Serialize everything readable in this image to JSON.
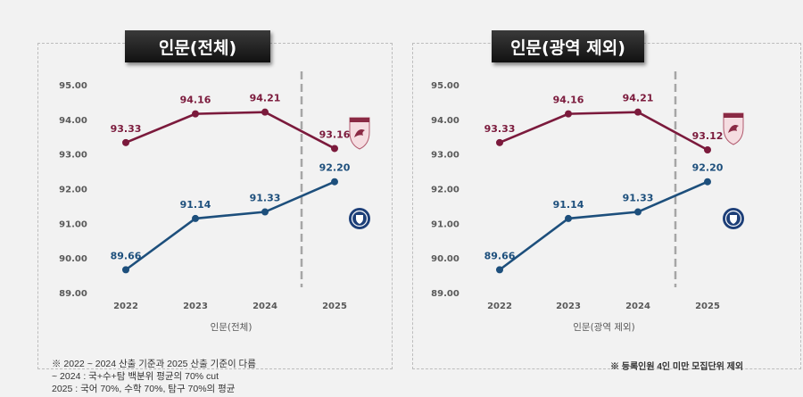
{
  "colors": {
    "korea": "#7b1a3c",
    "yonsei": "#1d4f7c",
    "divider": "#a6a6a6"
  },
  "notes": {
    "left": [
      "※ 2022 ~ 2024 산출 기준과 2025 산출 기준이 다름",
      "~ 2024 : 국+수+탐 백분위 평균의 70% cut",
      "2025 : 국어 70%, 수학 70%, 탐구 70%의 평균"
    ],
    "right": "※ 등록인원 4인 미만 모집단위 제외"
  },
  "chart_data": [
    {
      "type": "line",
      "title": "인문(전체)",
      "xlabel": "인문(전체)",
      "categories": [
        "2022",
        "2023",
        "2024",
        "2025"
      ],
      "ylim": [
        89,
        95
      ],
      "yticks": [
        "89.00",
        "90.00",
        "91.00",
        "92.00",
        "93.00",
        "94.00",
        "95.00"
      ],
      "grid": false,
      "divider_between": [
        "2024",
        "2025"
      ],
      "series": [
        {
          "logo": "korea-university-crest",
          "color": "#7b1a3c",
          "values": [
            93.33,
            94.16,
            94.21,
            93.16
          ],
          "labels": [
            "93.33",
            "94.16",
            "94.21",
            "93.16"
          ]
        },
        {
          "logo": "yonsei-university-crest",
          "color": "#1d4f7c",
          "values": [
            89.66,
            91.14,
            91.33,
            92.2
          ],
          "labels": [
            "89.66",
            "91.14",
            "91.33",
            "92.20"
          ]
        }
      ]
    },
    {
      "type": "line",
      "title": "인문(광역 제외)",
      "xlabel": "인문(광역 제외)",
      "categories": [
        "2022",
        "2023",
        "2024",
        "2025"
      ],
      "ylim": [
        89,
        95
      ],
      "yticks": [
        "89.00",
        "90.00",
        "91.00",
        "92.00",
        "93.00",
        "94.00",
        "95.00"
      ],
      "grid": false,
      "divider_between": [
        "2024",
        "2025"
      ],
      "series": [
        {
          "logo": "korea-university-crest",
          "color": "#7b1a3c",
          "values": [
            93.33,
            94.16,
            94.21,
            93.12
          ],
          "labels": [
            "93.33",
            "94.16",
            "94.21",
            "93.12"
          ]
        },
        {
          "logo": "yonsei-university-crest",
          "color": "#1d4f7c",
          "values": [
            89.66,
            91.14,
            91.33,
            92.2
          ],
          "labels": [
            "89.66",
            "91.14",
            "91.33",
            "92.20"
          ]
        }
      ]
    }
  ]
}
